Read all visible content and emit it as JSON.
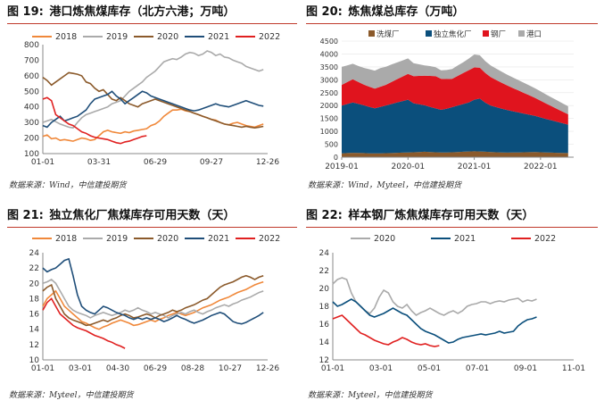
{
  "charts": [
    {
      "number": "图 19:",
      "title": "港口炼焦煤库存（北方六港；万吨）",
      "source": "数据来源：Wind，中信建投期货",
      "chart_data": {
        "type": "line",
        "title": "港口炼焦煤库存（北方六港；万吨）",
        "x_ticks": [
          "01-01",
          "03-31",
          "06-29",
          "09-27",
          "12-26"
        ],
        "y_ticks": [
          100,
          200,
          300,
          400,
          500,
          600,
          700,
          800
        ],
        "ylim": [
          100,
          800
        ],
        "legend": "top",
        "series": [
          {
            "name": "2018",
            "color": "#f0883a",
            "days_step": 7,
            "values": [
              210,
              220,
              195,
              200,
              185,
              190,
              185,
              180,
              190,
              200,
              195,
              185,
              190,
              215,
              240,
              250,
              240,
              235,
              230,
              240,
              235,
              245,
              250,
              255,
              260,
              280,
              290,
              310,
              340,
              360,
              380,
              380,
              385,
              375,
              370,
              360,
              350,
              340,
              330,
              320,
              315,
              300,
              290,
              285,
              295,
              300,
              290,
              280,
              275,
              270,
              280,
              290
            ]
          },
          {
            "name": "2019",
            "color": "#aaaaaa",
            "days_step": 7,
            "values": [
              300,
              310,
              320,
              305,
              290,
              280,
              270,
              265,
              300,
              330,
              350,
              360,
              370,
              380,
              390,
              400,
              420,
              430,
              440,
              470,
              500,
              520,
              540,
              560,
              590,
              610,
              630,
              660,
              690,
              700,
              710,
              705,
              720,
              740,
              750,
              745,
              730,
              740,
              760,
              750,
              730,
              740,
              720,
              715,
              700,
              690,
              680,
              660,
              650,
              640,
              630,
              640
            ]
          },
          {
            "name": "2020",
            "color": "#8b5a2b",
            "days_step": 7,
            "values": [
              590,
              570,
              540,
              560,
              580,
              600,
              620,
              615,
              610,
              600,
              560,
              550,
              520,
              500,
              510,
              480,
              450,
              440,
              460,
              440,
              420,
              410,
              400,
              420,
              430,
              440,
              450,
              440,
              430,
              420,
              410,
              400,
              390,
              380,
              370,
              360,
              350,
              340,
              330,
              320,
              310,
              300,
              290,
              285,
              280,
              275,
              270,
              275,
              270,
              265,
              270,
              275
            ]
          },
          {
            "name": "2021",
            "color": "#1f4e79",
            "days_step": 7,
            "values": [
              280,
              270,
              300,
              320,
              340,
              310,
              320,
              330,
              340,
              360,
              380,
              420,
              450,
              460,
              470,
              480,
              500,
              470,
              450,
              420,
              440,
              460,
              480,
              500,
              490,
              470,
              460,
              450,
              440,
              430,
              420,
              410,
              400,
              390,
              380,
              375,
              380,
              390,
              400,
              410,
              420,
              410,
              405,
              400,
              410,
              420,
              430,
              440,
              430,
              420,
              410,
              405
            ]
          },
          {
            "name": "2022",
            "color": "#e02020",
            "days_step": 7,
            "values": [
              450,
              460,
              440,
              350,
              330,
              310,
              290,
              280,
              260,
              240,
              230,
              215,
              205,
              200,
              195,
              190,
              180,
              170,
              165,
              175,
              180,
              190,
              200,
              210,
              215
            ]
          }
        ]
      }
    },
    {
      "number": "图 20:",
      "title": "炼焦煤总库存（万吨）",
      "source": "数据来源：Wind，Myteel，中信建投期货",
      "chart_data": {
        "type": "area",
        "title": "炼焦煤总库存（万吨）",
        "x_ticks": [
          "2019-01",
          "2020-01",
          "2021-01",
          "2022-01"
        ],
        "y_ticks": [
          0,
          500,
          1000,
          1500,
          2000,
          2500,
          3000,
          3500,
          4000,
          4500
        ],
        "ylim": [
          0,
          4500
        ],
        "legend": "top",
        "x_start": 2019.0,
        "x_step_months": 1,
        "series": [
          {
            "name": "洗煤厂",
            "color": "#8b5a2b",
            "values": [
              150,
              160,
              170,
              165,
              160,
              150,
              145,
              150,
              155,
              160,
              170,
              175,
              180,
              190,
              200,
              210,
              200,
              190,
              185,
              180,
              190,
              200,
              210,
              220,
              230,
              220,
              210,
              200,
              190,
              180,
              175,
              180,
              185,
              190,
              195,
              200,
              190,
              180,
              175,
              170,
              165,
              160
            ]
          },
          {
            "name": "独立焦化厂",
            "color": "#0b4f7c",
            "values": [
              1850,
              1900,
              1950,
              1900,
              1850,
              1800,
              1750,
              1800,
              1850,
              1900,
              1950,
              2000,
              2050,
              1900,
              1850,
              1800,
              1750,
              1700,
              1650,
              1700,
              1750,
              1800,
              1850,
              1900,
              2000,
              2050,
              1900,
              1800,
              1750,
              1700,
              1650,
              1600,
              1550,
              1500,
              1450,
              1400,
              1350,
              1300,
              1250,
              1200,
              1150,
              1100
            ]
          },
          {
            "name": "钢厂",
            "color": "#e0141e",
            "values": [
              800,
              850,
              900,
              850,
              800,
              780,
              760,
              780,
              800,
              850,
              900,
              950,
              1000,
              1050,
              1100,
              1150,
              1200,
              1250,
              1200,
              1150,
              1100,
              1150,
              1200,
              1250,
              1250,
              1200,
              1150,
              1100,
              1050,
              1000,
              950,
              900,
              850,
              800,
              750,
              700,
              650,
              600,
              550,
              500,
              450,
              400
            ]
          },
          {
            "name": "港口",
            "color": "#aaaaaa",
            "values": [
              700,
              650,
              600,
              620,
              650,
              680,
              700,
              720,
              700,
              680,
              650,
              620,
              600,
              500,
              450,
              400,
              380,
              350,
              330,
              350,
              380,
              400,
              420,
              450,
              500,
              480,
              460,
              450,
              440,
              430,
              420,
              410,
              400,
              390,
              380,
              370,
              360,
              350,
              340,
              330,
              320,
              310
            ]
          }
        ]
      }
    },
    {
      "number": "图 21:",
      "title": "独立焦化厂焦煤库存可用天数（天）",
      "source": "数据来源：Myteel，中信建投期货",
      "chart_data": {
        "type": "line",
        "title": "独立焦化厂焦煤库存可用天数（天）",
        "x_ticks": [
          "01-01",
          "03-01",
          "04-30",
          "06-29",
          "08-28",
          "10-27",
          "12-26"
        ],
        "y_ticks": [
          10,
          12,
          14,
          16,
          18,
          20,
          22,
          24
        ],
        "ylim": [
          10,
          24
        ],
        "legend": "top",
        "series": [
          {
            "name": "2018",
            "color": "#f0883a",
            "days_step": 7,
            "values": [
              17.0,
              18.0,
              18.5,
              19.0,
              18.0,
              17.0,
              16.5,
              16.0,
              15.5,
              15.0,
              14.8,
              14.5,
              14.2,
              14.0,
              14.3,
              14.5,
              14.8,
              15.0,
              15.2,
              15.0,
              14.8,
              14.5,
              14.6,
              14.8,
              15.0,
              15.2,
              15.0,
              15.3,
              15.5,
              15.8,
              16.0,
              16.2,
              16.0,
              15.8,
              16.0,
              16.2,
              16.5,
              16.8,
              17.0,
              17.2,
              17.5,
              17.8,
              18.0,
              18.2,
              18.5,
              18.8,
              19.0,
              19.2,
              19.5,
              19.8,
              20.0,
              20.2
            ]
          },
          {
            "name": "2019",
            "color": "#aaaaaa",
            "days_step": 7,
            "values": [
              20.0,
              20.2,
              20.5,
              20.0,
              19.0,
              18.0,
              17.0,
              16.5,
              16.2,
              16.0,
              15.8,
              15.5,
              15.8,
              16.0,
              16.2,
              16.0,
              15.8,
              16.0,
              16.2,
              16.5,
              16.3,
              16.5,
              16.8,
              16.5,
              16.3,
              16.0,
              16.2,
              16.0,
              15.8,
              15.5,
              15.8,
              16.0,
              16.2,
              16.0,
              16.3,
              16.5,
              16.2,
              16.0,
              16.3,
              16.5,
              16.8,
              17.0,
              17.2,
              17.0,
              17.3,
              17.5,
              17.8,
              18.0,
              18.2,
              18.5,
              18.8,
              19.0
            ]
          },
          {
            "name": "2020",
            "color": "#8b5a2b",
            "days_step": 7,
            "values": [
              19.0,
              19.5,
              19.8,
              18.0,
              17.0,
              16.0,
              15.5,
              15.2,
              15.0,
              14.8,
              14.5,
              14.6,
              14.8,
              15.0,
              15.2,
              15.0,
              15.3,
              15.5,
              15.8,
              16.0,
              15.8,
              15.5,
              15.6,
              15.8,
              16.0,
              15.8,
              15.5,
              15.8,
              16.0,
              16.2,
              16.5,
              16.3,
              16.5,
              16.8,
              17.0,
              17.2,
              17.5,
              17.8,
              18.0,
              18.5,
              19.0,
              19.5,
              19.8,
              20.0,
              20.2,
              20.5,
              20.8,
              21.0,
              20.8,
              20.5,
              20.8,
              21.0
            ]
          },
          {
            "name": "2021",
            "color": "#1f4e79",
            "days_step": 7,
            "values": [
              22.0,
              21.5,
              21.8,
              22.0,
              22.5,
              23.0,
              23.2,
              21.0,
              18.5,
              17.0,
              16.5,
              16.2,
              16.0,
              16.5,
              17.0,
              16.8,
              16.5,
              16.2,
              16.0,
              15.8,
              15.5,
              15.3,
              15.5,
              15.3,
              15.5,
              15.3,
              15.5,
              15.3,
              15.0,
              15.2,
              15.5,
              15.8,
              15.5,
              15.3,
              15.0,
              14.8,
              15.0,
              15.2,
              15.5,
              15.8,
              16.0,
              16.2,
              16.0,
              15.5,
              15.0,
              14.8,
              14.7,
              14.9,
              15.2,
              15.5,
              15.8,
              16.2
            ]
          },
          {
            "name": "2022",
            "color": "#e02020",
            "days_step": 7,
            "values": [
              16.5,
              17.5,
              18.0,
              17.0,
              16.0,
              15.5,
              15.0,
              14.5,
              14.2,
              14.0,
              13.8,
              13.5,
              13.2,
              13.0,
              12.8,
              12.5,
              12.3,
              12.0,
              11.8,
              11.5
            ]
          }
        ]
      }
    },
    {
      "number": "图 22:",
      "title": "样本钢厂炼焦煤库存可用天数（天）",
      "source": "数据来源：Myteel，中信建投期货",
      "chart_data": {
        "type": "line",
        "title": "样本钢厂炼焦煤库存可用天数（天）",
        "x_ticks": [
          "01-01",
          "03-01",
          "05-01",
          "07-01",
          "09-01",
          "11-01"
        ],
        "y_ticks": [
          12,
          14,
          16,
          18,
          20,
          22,
          24
        ],
        "ylim": [
          12,
          24
        ],
        "legend": "top",
        "series": [
          {
            "name": "2020",
            "color": "#aaaaaa",
            "days_step": 7,
            "values": [
              20.5,
              21.0,
              21.2,
              21.0,
              19.5,
              18.5,
              18.0,
              17.5,
              17.2,
              17.8,
              19.0,
              19.8,
              19.5,
              18.5,
              18.0,
              17.8,
              18.2,
              17.5,
              17.0,
              17.3,
              17.5,
              17.8,
              17.5,
              17.2,
              17.0,
              17.3,
              17.5,
              17.2,
              17.5,
              18.0,
              18.2,
              18.3,
              18.5,
              18.5,
              18.3,
              18.5,
              18.6,
              18.5,
              18.7,
              18.8,
              18.9,
              18.5,
              18.7,
              18.6,
              18.8
            ]
          },
          {
            "name": "2021",
            "color": "#0b4f7c",
            "days_step": 7,
            "values": [
              18.5,
              18.0,
              18.2,
              18.5,
              18.8,
              18.5,
              18.0,
              17.5,
              17.0,
              16.8,
              17.0,
              17.2,
              17.5,
              17.8,
              17.5,
              17.2,
              17.0,
              16.5,
              16.0,
              15.5,
              15.2,
              15.0,
              14.8,
              14.5,
              14.2,
              13.9,
              14.0,
              14.3,
              14.5,
              14.6,
              14.7,
              14.8,
              14.9,
              14.8,
              14.9,
              15.0,
              15.2,
              15.0,
              15.1,
              15.2,
              15.8,
              16.2,
              16.5,
              16.6,
              16.8
            ]
          },
          {
            "name": "2022",
            "color": "#e02020",
            "days_step": 7,
            "values": [
              16.6,
              16.8,
              17.0,
              16.5,
              16.0,
              15.5,
              15.0,
              14.8,
              14.5,
              14.2,
              14.0,
              13.8,
              13.7,
              14.0,
              14.2,
              14.5,
              14.3,
              14.0,
              13.8,
              13.7,
              13.8,
              13.6,
              13.5,
              13.6
            ]
          }
        ]
      }
    }
  ]
}
